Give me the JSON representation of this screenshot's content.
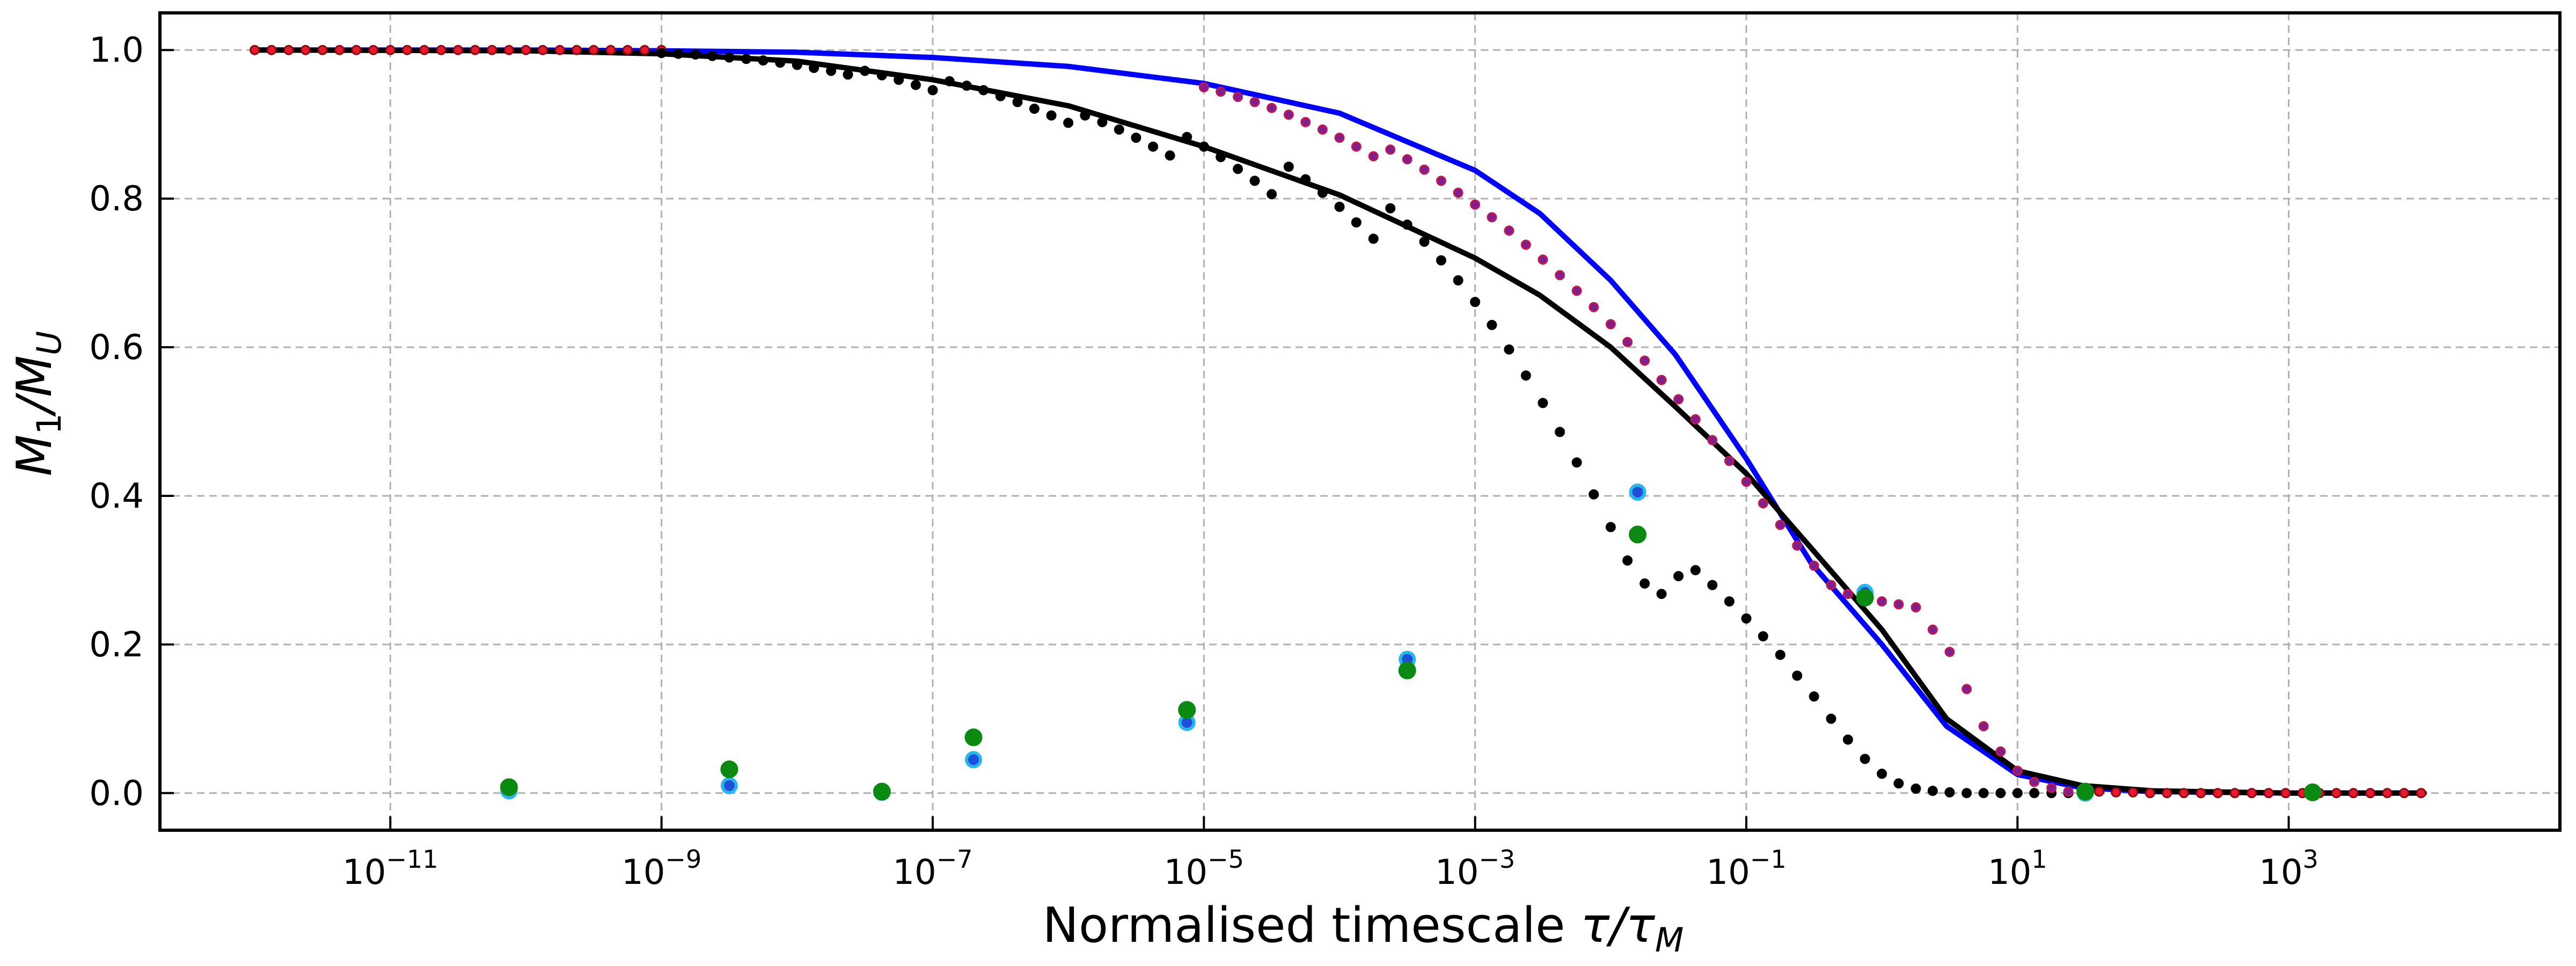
{
  "chart_data": {
    "type": "scatter",
    "x_scale": "log",
    "y_scale": "linear",
    "xlim": [
      2e-13,
      100000.0
    ],
    "ylim": [
      -0.05,
      1.05
    ],
    "grid": true,
    "xlabel_text": "Normalised timescale ",
    "xlabel_math": "τ/τ",
    "xlabel_sub": "M",
    "ylabel_math": "M",
    "ylabel_sub1": "1",
    "ylabel_mid": "/M",
    "ylabel_sub2": "U",
    "x_ticks": [
      {
        "value": 1e-11,
        "base": "10",
        "exp": "−11"
      },
      {
        "value": 1e-09,
        "base": "10",
        "exp": "−9"
      },
      {
        "value": 1e-07,
        "base": "10",
        "exp": "−7"
      },
      {
        "value": 1e-05,
        "base": "10",
        "exp": "−5"
      },
      {
        "value": 0.001,
        "base": "10",
        "exp": "−3"
      },
      {
        "value": 0.1,
        "base": "10",
        "exp": "−1"
      },
      {
        "value": 10,
        "base": "10",
        "exp": "1"
      },
      {
        "value": 1000,
        "base": "10",
        "exp": "3"
      }
    ],
    "y_ticks": [
      {
        "value": 0.0,
        "label": "0.0"
      },
      {
        "value": 0.2,
        "label": "0.2"
      },
      {
        "value": 0.4,
        "label": "0.4"
      },
      {
        "value": 0.6,
        "label": "0.6"
      },
      {
        "value": 0.8,
        "label": "0.8"
      },
      {
        "value": 1.0,
        "label": "1.0"
      }
    ],
    "series": [
      {
        "kind": "line",
        "color": "#0000ff",
        "x": [
          1e-12,
          1e-10,
          1e-09,
          1e-08,
          1e-07,
          1e-06,
          1e-05,
          0.0001,
          0.001,
          0.003,
          0.01,
          0.03,
          0.1,
          0.3,
          1,
          3,
          10,
          30,
          100,
          1000,
          10000
        ],
        "y": [
          1.0,
          1.0,
          0.999,
          0.997,
          0.99,
          0.978,
          0.955,
          0.915,
          0.838,
          0.78,
          0.69,
          0.59,
          0.45,
          0.31,
          0.2,
          0.09,
          0.025,
          0.007,
          0.002,
          0.0,
          0.0
        ]
      },
      {
        "kind": "line",
        "color": "#000000",
        "x": [
          1e-12,
          1e-10,
          1e-09,
          1e-08,
          1e-07,
          1e-06,
          1e-05,
          0.0001,
          0.001,
          0.003,
          0.01,
          0.03,
          0.1,
          0.3,
          1,
          3,
          10,
          30,
          100,
          1000,
          10000
        ],
        "y": [
          1.0,
          0.999,
          0.995,
          0.985,
          0.96,
          0.925,
          0.87,
          0.805,
          0.72,
          0.67,
          0.6,
          0.52,
          0.43,
          0.33,
          0.22,
          0.1,
          0.03,
          0.01,
          0.003,
          0.0,
          0.0
        ]
      },
      {
        "kind": "points",
        "color": "#e8192c",
        "edge": "#8a0a14",
        "radius": 8,
        "x": [
          1e-12,
          1.33e-12,
          1.78e-12,
          2.37e-12,
          3.16e-12,
          4.22e-12,
          5.62e-12,
          7.5e-12,
          1e-11,
          1.33e-11,
          1.78e-11,
          2.37e-11,
          3.16e-11,
          4.22e-11,
          5.62e-11,
          7.5e-11,
          1e-10,
          1.33e-10,
          1.78e-10,
          2.37e-10,
          3.16e-10,
          4.22e-10,
          5.62e-10,
          7.5e-10,
          1e-09,
          30,
          40,
          53.3,
          71.1,
          94.9,
          126.5,
          168.7,
          225,
          300,
          400,
          533.3,
          711.1,
          948.1,
          1264.1,
          1685.5,
          2247.3,
          2996.4,
          3995.2,
          5326.9,
          7102.5,
          9470
        ],
        "y": [
          1.0,
          1.0,
          1.0,
          1.0,
          1.0,
          1.0,
          1.0,
          1.0,
          1.0,
          1.0,
          1.0,
          1.0,
          1.0,
          1.0,
          1.0,
          1.0,
          1.0,
          1.0,
          1.0,
          1.0,
          1.0,
          1.0,
          1.0,
          1.0,
          1.0,
          0.003,
          0.002,
          0.001,
          0.001,
          0.0,
          0.0,
          0.0,
          0.0,
          0.0,
          0.0,
          0.0,
          0.0,
          0.0,
          0.0,
          0.0,
          0.0,
          0.0,
          0.0,
          0.0,
          0.0,
          0.0
        ]
      },
      {
        "kind": "points",
        "color": "#000000",
        "edge": "#000000",
        "radius": 8,
        "x": [
          1e-09,
          1.33e-09,
          1.78e-09,
          2.37e-09,
          3.16e-09,
          4.22e-09,
          5.62e-09,
          7.5e-09,
          1e-08,
          1.33e-08,
          1.78e-08,
          2.37e-08,
          3.16e-08,
          4.22e-08,
          5.62e-08,
          7.5e-08,
          1e-07,
          1.33e-07,
          1.78e-07,
          2.37e-07,
          3.16e-07,
          4.22e-07,
          5.62e-07,
          7.5e-07,
          1e-06,
          1.33e-06,
          1.78e-06,
          2.37e-06,
          3.16e-06,
          4.22e-06,
          5.62e-06,
          7.5e-06,
          1e-05,
          1.33e-05,
          1.78e-05,
          2.37e-05,
          3.16e-05,
          4.22e-05,
          5.62e-05,
          7.5e-05,
          0.0001,
          0.000133,
          0.000178,
          0.000237,
          0.000316,
          0.000422,
          0.000562,
          0.00075,
          0.001,
          0.00133,
          0.00178,
          0.00237,
          0.00316,
          0.00422,
          0.00562,
          0.0075,
          0.01,
          0.0133,
          0.0178,
          0.0237,
          0.0316,
          0.0422,
          0.0562,
          0.075,
          0.1,
          0.133,
          0.178,
          0.237,
          0.316,
          0.422,
          0.562,
          0.75,
          1.0,
          1.33,
          1.78,
          2.37,
          3.16,
          4.22,
          5.62,
          7.5,
          10,
          13.3,
          17.8,
          23.7
        ],
        "y": [
          0.996,
          0.995,
          0.994,
          0.992,
          0.99,
          0.988,
          0.986,
          0.983,
          0.98,
          0.976,
          0.972,
          0.967,
          0.972,
          0.966,
          0.96,
          0.953,
          0.946,
          0.958,
          0.952,
          0.946,
          0.938,
          0.93,
          0.921,
          0.912,
          0.902,
          0.912,
          0.903,
          0.893,
          0.882,
          0.87,
          0.858,
          0.883,
          0.87,
          0.856,
          0.84,
          0.824,
          0.806,
          0.843,
          0.826,
          0.808,
          0.789,
          0.768,
          0.746,
          0.787,
          0.765,
          0.742,
          0.717,
          0.69,
          0.661,
          0.63,
          0.597,
          0.562,
          0.525,
          0.486,
          0.445,
          0.402,
          0.358,
          0.313,
          0.282,
          0.268,
          0.292,
          0.3,
          0.28,
          0.258,
          0.235,
          0.211,
          0.186,
          0.158,
          0.13,
          0.1,
          0.072,
          0.046,
          0.026,
          0.013,
          0.006,
          0.003,
          0.001,
          0.0,
          0.0,
          0.0,
          0.0,
          0.0,
          0.0,
          0.0
        ]
      },
      {
        "kind": "points",
        "color": "#7d1f8e",
        "edge": "#c2184f",
        "radius": 8,
        "x": [
          1e-05,
          1.33e-05,
          1.78e-05,
          2.37e-05,
          3.16e-05,
          4.22e-05,
          5.62e-05,
          7.5e-05,
          0.0001,
          0.000133,
          0.000178,
          0.000237,
          0.000316,
          0.000422,
          0.000562,
          0.00075,
          0.001,
          0.00133,
          0.00178,
          0.00237,
          0.00316,
          0.00422,
          0.00562,
          0.0075,
          0.01,
          0.0133,
          0.0178,
          0.0237,
          0.0316,
          0.0422,
          0.0562,
          0.075,
          0.1,
          0.133,
          0.178,
          0.237,
          0.316,
          0.422,
          0.562,
          0.75,
          1.0,
          1.33,
          1.78,
          2.37,
          3.16,
          4.22,
          5.62,
          7.5,
          10,
          13.3,
          17.8,
          23.7
        ],
        "y": [
          0.95,
          0.944,
          0.937,
          0.93,
          0.922,
          0.913,
          0.903,
          0.893,
          0.882,
          0.87,
          0.857,
          0.866,
          0.853,
          0.839,
          0.824,
          0.808,
          0.792,
          0.775,
          0.757,
          0.738,
          0.718,
          0.697,
          0.676,
          0.654,
          0.631,
          0.607,
          0.582,
          0.556,
          0.53,
          0.503,
          0.475,
          0.447,
          0.419,
          0.39,
          0.361,
          0.333,
          0.306,
          0.28,
          0.268,
          0.262,
          0.258,
          0.254,
          0.25,
          0.22,
          0.19,
          0.14,
          0.09,
          0.056,
          0.03,
          0.015,
          0.007,
          0.002
        ]
      },
      {
        "kind": "points",
        "color": "#1f4fd8",
        "edge": "#29b6e8",
        "radius": 13,
        "stroke_width": 6,
        "x": [
          7.5e-11,
          3.16e-09,
          4.22e-08,
          2e-07,
          7.5e-06,
          0.000316,
          0.0158,
          0.75,
          31.6,
          1500
        ],
        "y": [
          0.003,
          0.01,
          0.001,
          0.045,
          0.095,
          0.18,
          0.405,
          0.27,
          0.0,
          0.001
        ]
      },
      {
        "kind": "points",
        "color": "#0b8a12",
        "edge": "#0b8a12",
        "radius": 15,
        "x": [
          7.5e-11,
          3.16e-09,
          4.22e-08,
          2e-07,
          7.5e-06,
          0.000316,
          0.0158,
          0.75,
          31.6,
          1500
        ],
        "y": [
          0.008,
          0.032,
          0.002,
          0.075,
          0.112,
          0.165,
          0.348,
          0.263,
          0.002,
          0.001
        ]
      }
    ]
  }
}
